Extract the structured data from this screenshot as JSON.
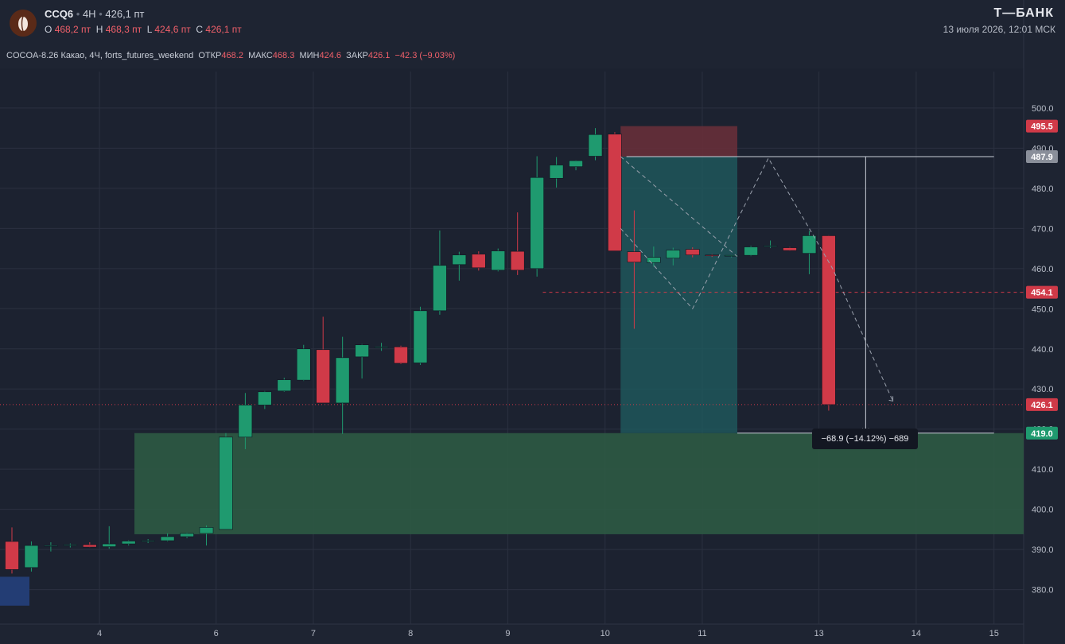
{
  "header": {
    "symbol": "CCQ6",
    "separator": "•",
    "timeframe": "4H",
    "last_price": "426,1 пт",
    "o_label": "O",
    "o_value": "468,2 пт",
    "h_label": "H",
    "h_value": "468,3 пт",
    "l_label": "L",
    "l_value": "424,6 пт",
    "c_label": "C",
    "c_value": "426,1 пт",
    "brand": "Т—БАНК",
    "datetime": "13 июля 2026, 12:01 МСК"
  },
  "info_line": {
    "instrument": "COCOA-8.26 Какао, 4Ч, forts_futures_weekend",
    "open_label": "ОТКР",
    "open": "468.2",
    "high_label": "МАКС",
    "high": "468.3",
    "low_label": "МИН",
    "low": "424.6",
    "close_label": "ЗАКР",
    "close": "426.1",
    "change": "−42.3 (−9.03%)"
  },
  "measure_tooltip": "−68.9 (−14.12%) −689",
  "colors": {
    "background": "#1e2432",
    "up": "#1f9a6f",
    "down": "#d03a48",
    "grid": "#2b3140",
    "zone_green": "#2e5a44",
    "zone_teal": "#1f5d60",
    "zone_red": "#6b2f3a"
  },
  "chart_data": {
    "type": "candlestick",
    "x_tick_labels": [
      {
        "label": "4",
        "index": 4.5
      },
      {
        "label": "6",
        "index": 10.5
      },
      {
        "label": "7",
        "index": 15.5
      },
      {
        "label": "8",
        "index": 20.5
      },
      {
        "label": "9",
        "index": 25.5
      },
      {
        "label": "10",
        "index": 30.5
      },
      {
        "label": "11",
        "index": 35.5
      },
      {
        "label": "13",
        "index": 41.5
      },
      {
        "label": "14",
        "index": 46.5
      },
      {
        "label": "15",
        "index": 50.5
      }
    ],
    "y_ticks": [
      380,
      390,
      400,
      410,
      420,
      430,
      440,
      450,
      460,
      470,
      480,
      490,
      500
    ],
    "ylim": [
      371.4,
      509.1
    ],
    "xlim": [
      -0.5,
      52
    ],
    "candles": [
      [
        392.0,
        395.5,
        384.0,
        385.0
      ],
      [
        385.5,
        392.0,
        384.5,
        391.0
      ],
      [
        391.0,
        391.8,
        389.5,
        391.0
      ],
      [
        391.0,
        391.5,
        390.5,
        391.2
      ],
      [
        391.2,
        391.8,
        390.5,
        390.6
      ],
      [
        390.7,
        395.8,
        390.2,
        391.4
      ],
      [
        391.4,
        392.3,
        391.0,
        392.1
      ],
      [
        392.1,
        392.6,
        391.6,
        392.2
      ],
      [
        392.2,
        394.0,
        392.0,
        393.2
      ],
      [
        393.2,
        394.2,
        392.8,
        394.0
      ],
      [
        394.0,
        396.0,
        391.0,
        395.5
      ],
      [
        395.0,
        419.0,
        395.0,
        418.0
      ],
      [
        418.0,
        429.0,
        415.0,
        426.0
      ],
      [
        426.0,
        429.5,
        425.0,
        429.3
      ],
      [
        429.5,
        432.8,
        429.3,
        432.3
      ],
      [
        432.2,
        441.0,
        432.0,
        440.0
      ],
      [
        439.8,
        448.0,
        426.5,
        426.5
      ],
      [
        426.5,
        443.0,
        418.8,
        437.8
      ],
      [
        438.0,
        441.2,
        432.6,
        441.0
      ],
      [
        440.5,
        441.5,
        439.5,
        440.5
      ],
      [
        440.5,
        440.8,
        436.2,
        436.4
      ],
      [
        436.5,
        450.5,
        436.0,
        449.5
      ],
      [
        449.5,
        469.5,
        448.5,
        460.8
      ],
      [
        461.0,
        464.2,
        457.0,
        463.4
      ],
      [
        463.6,
        464.3,
        459.5,
        460.2
      ],
      [
        459.6,
        465.0,
        459.3,
        464.4
      ],
      [
        464.3,
        474.0,
        458.4,
        459.6
      ],
      [
        460.0,
        488.0,
        458.0,
        482.7
      ],
      [
        482.5,
        487.8,
        480.2,
        485.8
      ],
      [
        485.4,
        487.0,
        484.5,
        486.9
      ],
      [
        488.0,
        495.0,
        487.0,
        493.4
      ],
      [
        493.5,
        494.0,
        464.5,
        464.4
      ],
      [
        464.2,
        474.5,
        445.0,
        461.6
      ],
      [
        461.5,
        465.5,
        460.5,
        462.8
      ],
      [
        462.6,
        465.2,
        460.8,
        464.6
      ],
      [
        464.8,
        465.3,
        462.8,
        463.4
      ],
      [
        463.4,
        463.6,
        462.9,
        463.2
      ],
      [
        463.1,
        463.4,
        462.8,
        463.3
      ],
      [
        463.3,
        465.7,
        463.1,
        465.4
      ],
      [
        465.6,
        467.0,
        465.1,
        465.7
      ],
      [
        465.2,
        465.4,
        464.4,
        464.5
      ],
      [
        463.8,
        469.4,
        458.6,
        468.2
      ],
      [
        468.2,
        468.3,
        424.6,
        426.1
      ]
    ],
    "price_badges": [
      {
        "value": 495.5,
        "label": "495.5",
        "color": "#d03a48"
      },
      {
        "value": 487.9,
        "label": "487.9",
        "color": "#8a8f9a"
      },
      {
        "value": 454.1,
        "label": "454.1",
        "color": "#d03a48"
      },
      {
        "value": 426.1,
        "label": "426.1",
        "color": "#d03a48"
      },
      {
        "value": 419.0,
        "label": "419.0",
        "color": "#1f9a6f"
      }
    ]
  }
}
